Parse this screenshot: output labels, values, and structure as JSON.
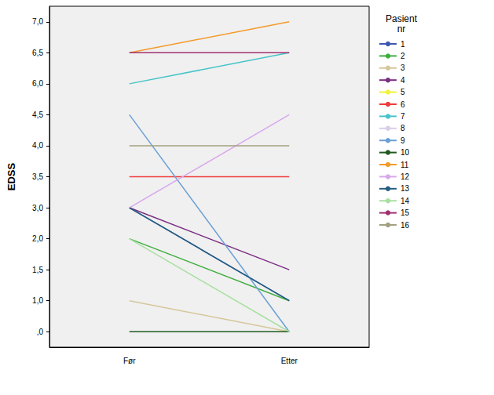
{
  "chart_data": {
    "type": "line",
    "y_label": "EDSS",
    "legend_title": "Pasient nr",
    "legend": "right",
    "grid": false,
    "categories": [
      "Før",
      "Etter"
    ],
    "yticks": [
      {
        "value": 0,
        "label": ",0"
      },
      {
        "value": 1,
        "label": "1,0"
      },
      {
        "value": 1.5,
        "label": "1,5"
      },
      {
        "value": 2,
        "label": "2,0"
      },
      {
        "value": 3,
        "label": "3,0"
      },
      {
        "value": 3.5,
        "label": "3,5"
      },
      {
        "value": 4,
        "label": "4,0"
      },
      {
        "value": 4.5,
        "label": "4,5"
      },
      {
        "value": 6,
        "label": "6,0"
      },
      {
        "value": 6.5,
        "label": "6,5"
      },
      {
        "value": 7,
        "label": "7,0"
      }
    ],
    "series": [
      {
        "name": "1",
        "color": "#3d56b0",
        "values": [
          3,
          1
        ]
      },
      {
        "name": "2",
        "color": "#3fae3f",
        "values": [
          2,
          1
        ]
      },
      {
        "name": "3",
        "color": "#d6c79a",
        "values": [
          1,
          0
        ]
      },
      {
        "name": "4",
        "color": "#7b2d83",
        "values": [
          3,
          1.5
        ]
      },
      {
        "name": "5",
        "color": "#f2f23a",
        "values": [
          null,
          null
        ]
      },
      {
        "name": "6",
        "color": "#f03a3a",
        "values": [
          3.5,
          3.5
        ]
      },
      {
        "name": "7",
        "color": "#46c4c8",
        "values": [
          6,
          6.5
        ]
      },
      {
        "name": "8",
        "color": "#d9cde6",
        "values": [
          null,
          null
        ]
      },
      {
        "name": "9",
        "color": "#6a9fd6",
        "values": [
          4.5,
          0
        ]
      },
      {
        "name": "10",
        "color": "#1f5a1f",
        "values": [
          0,
          0
        ]
      },
      {
        "name": "11",
        "color": "#f39a2a",
        "values": [
          6.5,
          7
        ]
      },
      {
        "name": "12",
        "color": "#d7a8ec",
        "values": [
          3,
          4.5
        ]
      },
      {
        "name": "13",
        "color": "#245f80",
        "values": [
          3,
          1
        ]
      },
      {
        "name": "14",
        "color": "#a8e0a0",
        "values": [
          2,
          0
        ]
      },
      {
        "name": "15",
        "color": "#a23070",
        "values": [
          6.5,
          6.5
        ]
      },
      {
        "name": "16",
        "color": "#a3a080",
        "values": [
          4,
          4
        ]
      }
    ]
  }
}
